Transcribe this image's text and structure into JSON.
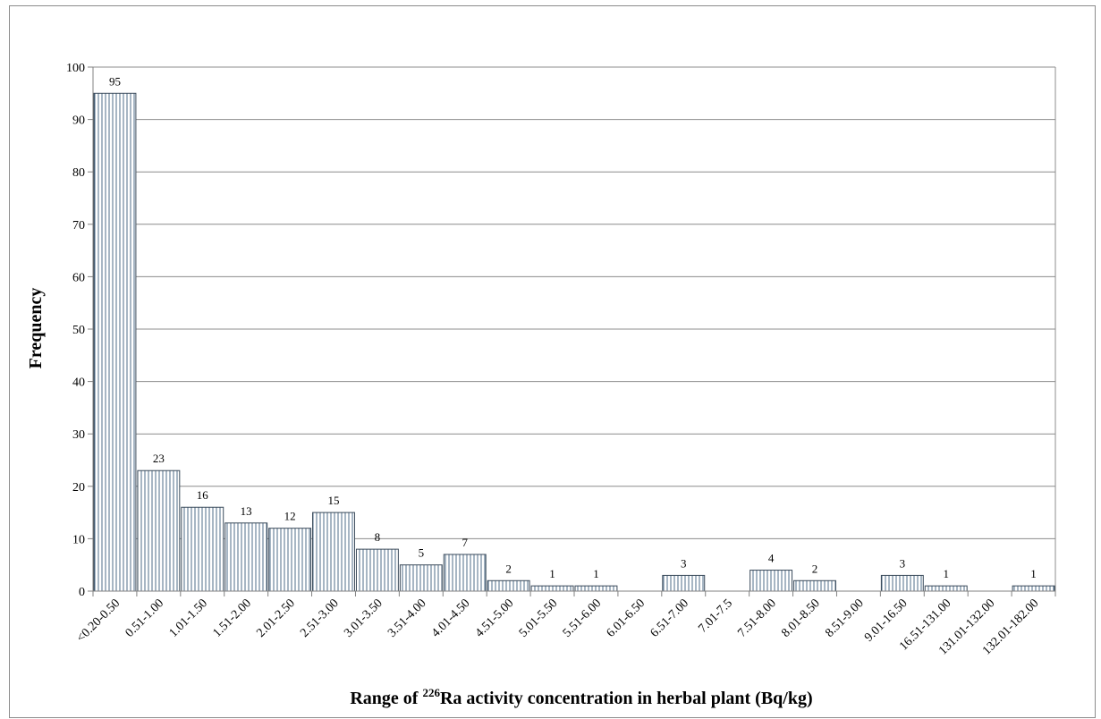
{
  "chart_data": {
    "type": "bar",
    "title": "",
    "ylabel": "Frequency",
    "xlabel": {
      "prefix": "Range of ",
      "superscript": "226",
      "suffix": "Ra activity concentration in herbal plant (Bq/kg)",
      "full": "Range of 226Ra activity concentration in herbal plant (Bq/kg)"
    },
    "ylim": [
      0,
      100
    ],
    "yticks": [
      0,
      10,
      20,
      30,
      40,
      50,
      60,
      70,
      80,
      90,
      100
    ],
    "grid": "horizontal",
    "legend": "none",
    "bar_style": "vertical-hatch",
    "colors": {
      "bar_stroke": "#3a4a5a",
      "hatch": "#4f6d8a",
      "grid": "#8c8c8c",
      "axis": "#808080"
    },
    "categories": [
      "<0.20-0.50",
      "0.51-1.00",
      "1.01-1.50",
      "1.51-2.00",
      "2.01-2.50",
      "2.51-3.00",
      "3.01-3.50",
      "3.51-4.00",
      "4.01-4.50",
      "4.51-5.00",
      "5.01-5.50",
      "5.51-6.00",
      "6.01-6.50",
      "6.51-7.00",
      "7.01-7.5",
      "7.51-8.00",
      "8.01-8.50",
      "8.51-9.00",
      "9.01-16.50",
      "16.51-131.00",
      "131.01-132.00",
      "132.01-182.00"
    ],
    "values": [
      95,
      23,
      16,
      13,
      12,
      15,
      8,
      5,
      7,
      2,
      1,
      1,
      0,
      3,
      0,
      4,
      2,
      0,
      3,
      1,
      0,
      1
    ],
    "data_labels": [
      "95",
      "23",
      "16",
      "13",
      "12",
      "15",
      "8",
      "5",
      "7",
      "2",
      "1",
      "1",
      "",
      "3",
      "",
      "4",
      "2",
      "",
      "3",
      "1",
      "",
      "1"
    ]
  }
}
